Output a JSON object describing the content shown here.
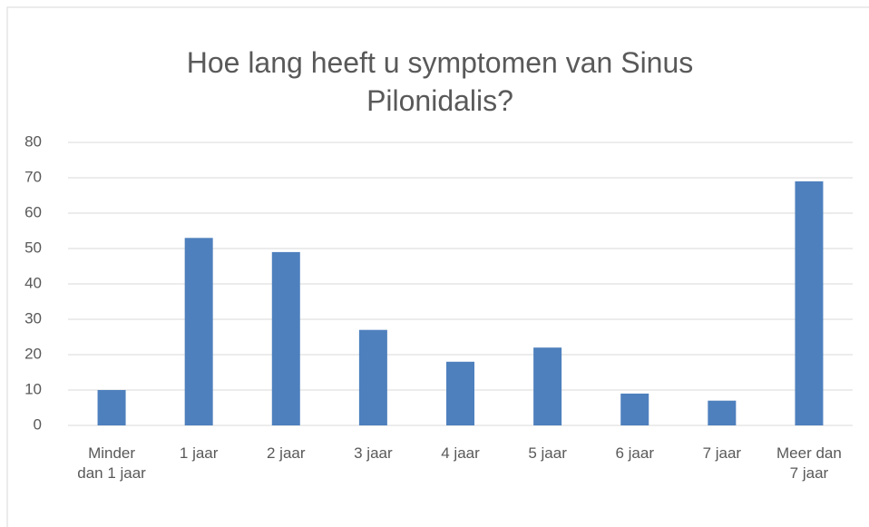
{
  "chart_data": {
    "type": "bar",
    "title": "Hoe lang heeft u symptomen van Sinus Pilonidalis?",
    "categories": [
      "Minder dan 1 jaar",
      "1 jaar",
      "2 jaar",
      "3 jaar",
      "4 jaar",
      "5 jaar",
      "6 jaar",
      "7 jaar",
      "Meer dan 7 jaar"
    ],
    "values": [
      10,
      53,
      49,
      27,
      18,
      22,
      9,
      7,
      69
    ],
    "color": "#4e80bd",
    "ylim": [
      0,
      80
    ],
    "yticks": [
      0,
      10,
      20,
      30,
      40,
      50,
      60,
      70,
      80
    ],
    "grid": true
  }
}
